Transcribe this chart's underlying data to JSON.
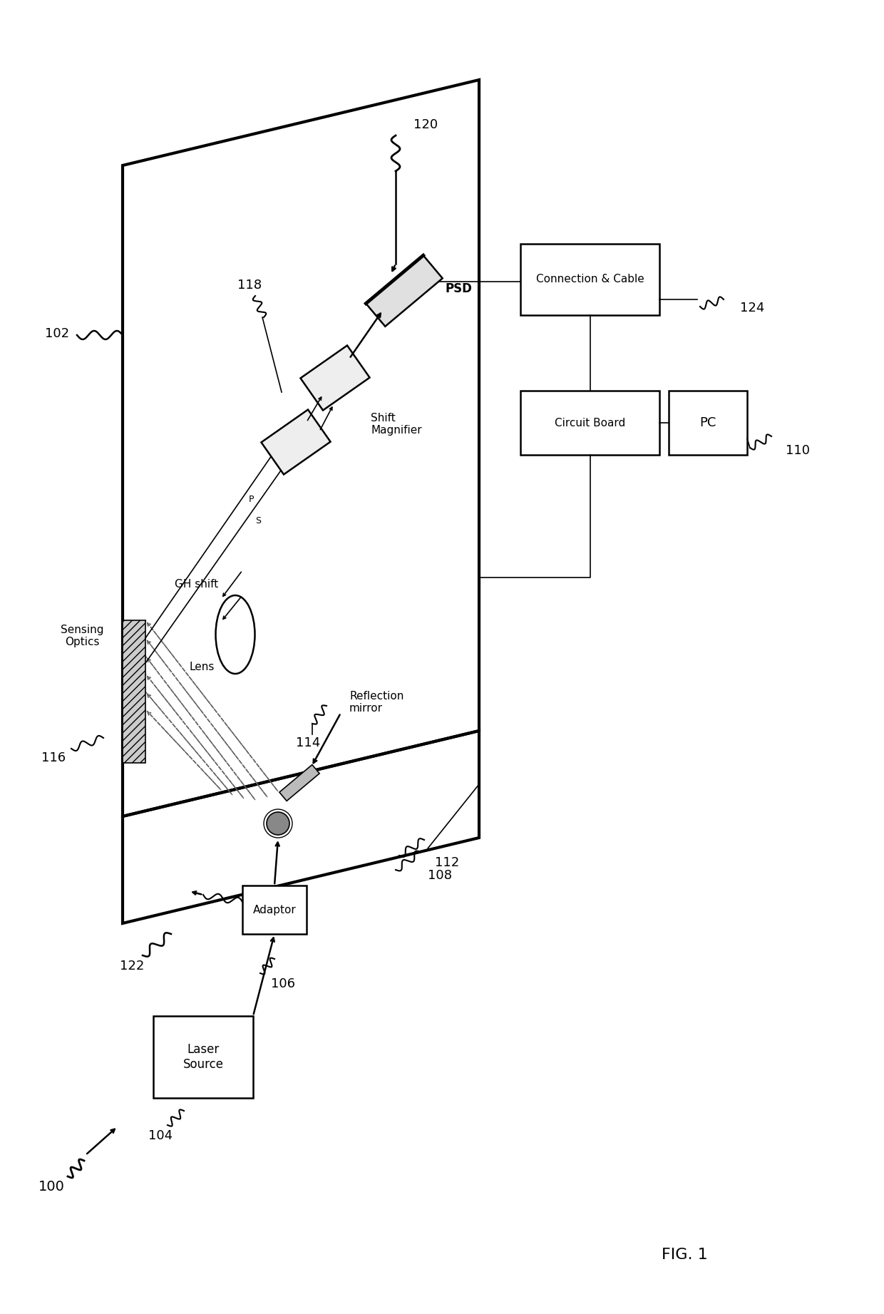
{
  "bg_color": "#ffffff",
  "ec": "#000000",
  "fig_label": "FIG. 1",
  "lw_thick": 3.0,
  "lw_med": 1.8,
  "lw_thin": 1.2,
  "texts": {
    "laser": "Laser\nSource",
    "adaptor": "Adaptor",
    "sensing": "Sensing\nOptics",
    "shift_mag": "Shift\nMagnifier",
    "psd": "PSD",
    "lens": "Lens",
    "refl_mirror": "Reflection\nmirror",
    "circuit": "Circuit Board",
    "pc": "PC",
    "conn_cable": "Connection & Cable",
    "gh_shift": "GH shift",
    "p_label": "P",
    "s_label": "S",
    "fig1": "FIG. 1"
  },
  "refs": {
    "r100": "100",
    "r102": "102",
    "r104": "104",
    "r106": "106",
    "r108": "108",
    "r110": "110",
    "r112": "112",
    "r114": "114",
    "r116": "116",
    "r118": "118",
    "r120": "120",
    "r122": "122",
    "r124": "124"
  }
}
